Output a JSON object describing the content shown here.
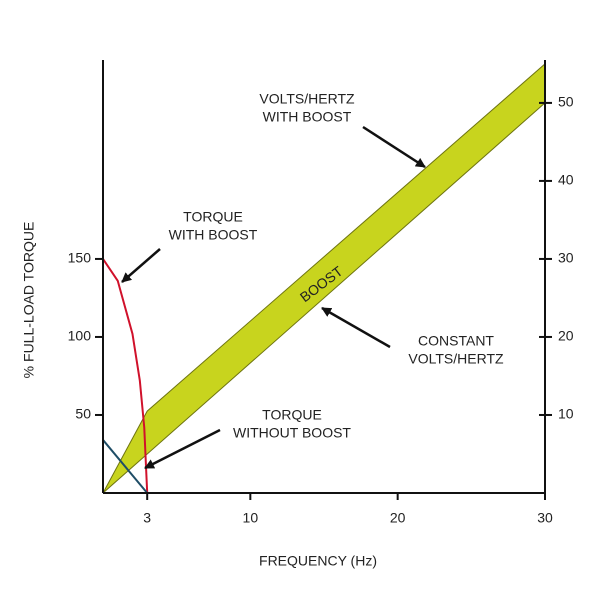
{
  "chart_data": {
    "type": "line",
    "x_label": "FREQUENCY (Hz)",
    "y_label": "% FULL-LOAD TORQUE",
    "xlim": [
      0,
      30
    ],
    "xticks": [
      3,
      10,
      20,
      30
    ],
    "ylim": [
      0,
      277.5
    ],
    "yticks": [
      50,
      100,
      150
    ],
    "y2lim": [
      0,
      55.5
    ],
    "y2ticks": [
      10,
      20,
      30,
      40,
      50
    ],
    "series": [
      {
        "kind": "band",
        "axis": "y2",
        "color": "#c8d41e",
        "x": [
          0,
          3,
          30
        ],
        "upper": [
          0,
          10.5,
          55
        ],
        "lower": [
          0,
          5,
          50
        ]
      },
      {
        "axis": "y",
        "color": "#d0112b",
        "x": [
          0,
          1,
          2,
          2.5,
          2.8,
          3
        ],
        "values": [
          150,
          136,
          102,
          72,
          42,
          0
        ]
      },
      {
        "axis": "y",
        "color": "#1e4d66",
        "x": [
          0,
          3
        ],
        "values": [
          34,
          0
        ]
      }
    ],
    "annotations": [
      {
        "text": [
          "VOLTS/HERTZ",
          "WITH BOOST"
        ]
      },
      {
        "text": [
          "TORQUE",
          "WITH BOOST"
        ]
      },
      {
        "text": [
          "BOOST"
        ]
      },
      {
        "text": [
          "CONSTANT",
          "VOLTS/HERTZ"
        ]
      },
      {
        "text": [
          "TORQUE",
          "WITHOUT BOOST"
        ]
      }
    ]
  }
}
